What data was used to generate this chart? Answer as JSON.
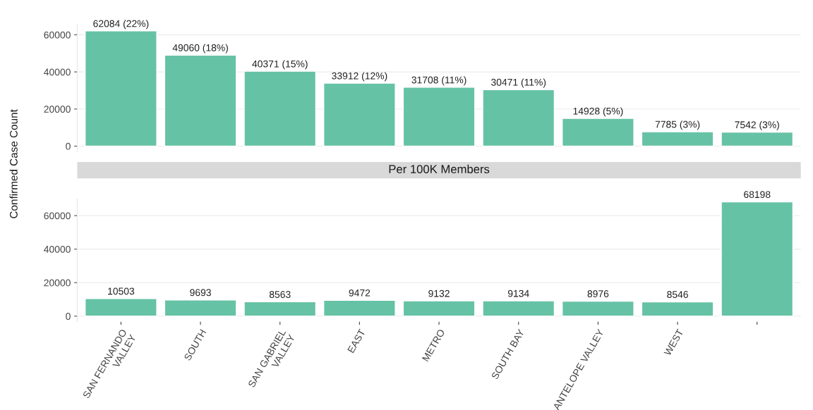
{
  "chart_data": [
    {
      "type": "bar",
      "ylabel": "Confirmed Case Count",
      "values": [
        62084,
        49060,
        40371,
        33912,
        31708,
        30471,
        14928,
        7785,
        7542
      ],
      "value_labels": [
        "62084 (22%)",
        "49060 (18%)",
        "40371 (15%)",
        "33912 (12%)",
        "31708 (11%)",
        "30471 (11%)",
        "14928 (5%)",
        "7785 (3%)",
        "7542 (3%)"
      ],
      "color": "#66c2a5",
      "ylim": [
        -3000,
        65500
      ],
      "yticks": [
        0,
        20000,
        40000,
        60000
      ],
      "grid": true,
      "tick_labels": "y"
    },
    {
      "type": "bar",
      "title": "Per 100K Members",
      "categories": [
        "SAN FERNANDO\nVALLEY",
        "SOUTH",
        "SAN GABRIEL\nVALLEY",
        "EAST",
        "METRO",
        "SOUTH BAY",
        "ANTELOPE VALLEY",
        "WEST",
        null
      ],
      "values": [
        10503,
        9693,
        8563,
        9472,
        9132,
        9134,
        8976,
        8546,
        68198
      ],
      "data_labels": true,
      "color": "#66c2a5",
      "ylim": [
        -3400,
        70000
      ],
      "yticks": [
        0,
        20000,
        40000,
        60000
      ],
      "grid": true
    }
  ]
}
